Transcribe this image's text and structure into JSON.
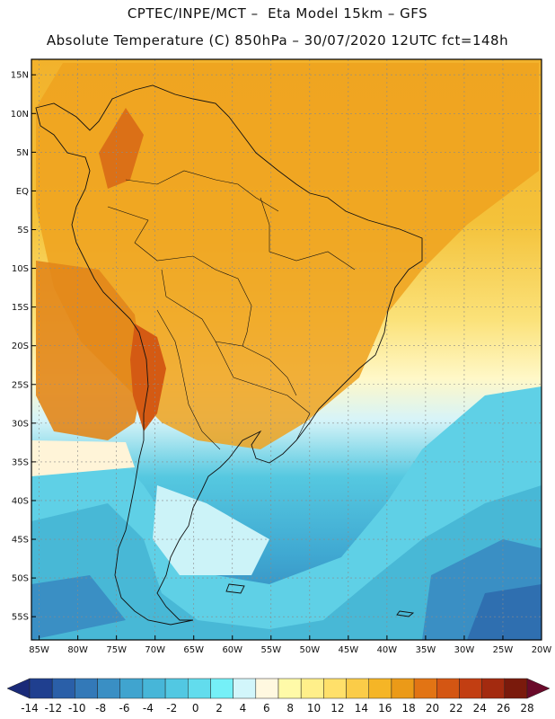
{
  "header": {
    "line1": "CPTEC/INPE/MCT –  Eta Model 15km – GFS",
    "line2": "Absolute Temperature (C) 850hPa – 30/07/2020 12UTC fct=148h"
  },
  "map": {
    "lon_range": [
      -86,
      -20
    ],
    "lat_range": [
      -58,
      17
    ],
    "lat_ticks": [
      {
        "value": 15,
        "label": "15N"
      },
      {
        "value": 10,
        "label": "10N"
      },
      {
        "value": 5,
        "label": "5N"
      },
      {
        "value": 0,
        "label": "EQ"
      },
      {
        "value": -5,
        "label": "5S"
      },
      {
        "value": -10,
        "label": "10S"
      },
      {
        "value": -15,
        "label": "15S"
      },
      {
        "value": -20,
        "label": "20S"
      },
      {
        "value": -25,
        "label": "25S"
      },
      {
        "value": -30,
        "label": "30S"
      },
      {
        "value": -35,
        "label": "35S"
      },
      {
        "value": -40,
        "label": "40S"
      },
      {
        "value": -45,
        "label": "45S"
      },
      {
        "value": -50,
        "label": "50S"
      },
      {
        "value": -55,
        "label": "55S"
      }
    ],
    "lon_ticks": [
      {
        "value": -85,
        "label": "85W"
      },
      {
        "value": -80,
        "label": "80W"
      },
      {
        "value": -75,
        "label": "75W"
      },
      {
        "value": -70,
        "label": "70W"
      },
      {
        "value": -65,
        "label": "65W"
      },
      {
        "value": -60,
        "label": "60W"
      },
      {
        "value": -55,
        "label": "55W"
      },
      {
        "value": -50,
        "label": "50W"
      },
      {
        "value": -45,
        "label": "45W"
      },
      {
        "value": -40,
        "label": "40W"
      },
      {
        "value": -35,
        "label": "35W"
      },
      {
        "value": -30,
        "label": "30W"
      },
      {
        "value": -25,
        "label": "25W"
      },
      {
        "value": -20,
        "label": "20W"
      }
    ],
    "grid": true
  },
  "colorbar": {
    "labels": [
      "-14",
      "-12",
      "-10",
      "-8",
      "-6",
      "-4",
      "-2",
      "0",
      "2",
      "4",
      "6",
      "8",
      "10",
      "12",
      "14",
      "16",
      "18",
      "20",
      "22",
      "24",
      "26",
      "28"
    ],
    "colors": [
      "#1f3f8f",
      "#2a5fa8",
      "#3379b8",
      "#3a8fc4",
      "#40a4cf",
      "#47b6d8",
      "#52c8e2",
      "#62dced",
      "#75f0f7",
      "#d2f6fb",
      "#fff8e0",
      "#fffaa8",
      "#ffef8a",
      "#ffe06a",
      "#fbcc48",
      "#f5b526",
      "#eb9a18",
      "#e27414",
      "#d45613",
      "#c23e12",
      "#a32a0f",
      "#7a1a0c"
    ],
    "low_extend": "#1a2a78",
    "high_extend": "#6a0a2a"
  }
}
